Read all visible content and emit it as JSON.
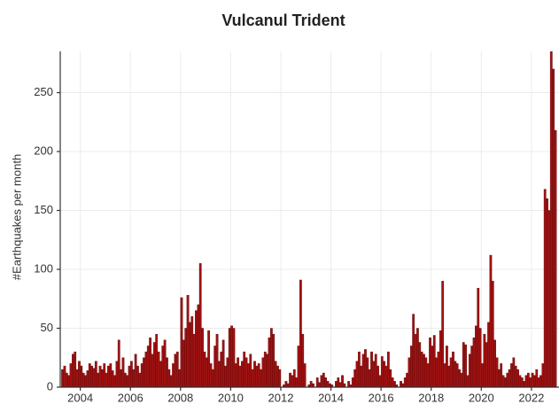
{
  "chart_data": {
    "type": "histogram",
    "title": "Vulcanul Trident",
    "ylabel": "#Earthquakes per month",
    "color": "#a01212",
    "edgecolor": "#5a0505",
    "xlim": [
      2003.2,
      2023.1
    ],
    "xticks": [
      2004,
      2006,
      2008,
      2010,
      2012,
      2014,
      2016,
      2018,
      2020,
      2022
    ],
    "ylim": [
      0,
      285
    ],
    "yticks": [
      0,
      50,
      100,
      150,
      200,
      250
    ],
    "grid": true,
    "bins": [
      2003.25,
      2003.333,
      2003.417,
      2003.5,
      2003.583,
      2003.667,
      2003.75,
      2003.833,
      2003.917,
      2004,
      2004.083,
      2004.167,
      2004.25,
      2004.333,
      2004.417,
      2004.5,
      2004.583,
      2004.667,
      2004.75,
      2004.833,
      2004.917,
      2005,
      2005.083,
      2005.167,
      2005.25,
      2005.333,
      2005.417,
      2005.5,
      2005.583,
      2005.667,
      2005.75,
      2005.833,
      2005.917,
      2006,
      2006.083,
      2006.167,
      2006.25,
      2006.333,
      2006.417,
      2006.5,
      2006.583,
      2006.667,
      2006.75,
      2006.833,
      2006.917,
      2007,
      2007.083,
      2007.167,
      2007.25,
      2007.333,
      2007.417,
      2007.5,
      2007.583,
      2007.667,
      2007.75,
      2007.833,
      2007.917,
      2008,
      2008.083,
      2008.167,
      2008.25,
      2008.333,
      2008.417,
      2008.5,
      2008.583,
      2008.667,
      2008.75,
      2008.833,
      2008.917,
      2009,
      2009.083,
      2009.167,
      2009.25,
      2009.333,
      2009.417,
      2009.5,
      2009.583,
      2009.667,
      2009.75,
      2009.833,
      2009.917,
      2010,
      2010.083,
      2010.167,
      2010.25,
      2010.333,
      2010.417,
      2010.5,
      2010.583,
      2010.667,
      2010.75,
      2010.833,
      2010.917,
      2011,
      2011.083,
      2011.167,
      2011.25,
      2011.333,
      2011.417,
      2011.5,
      2011.583,
      2011.667,
      2011.75,
      2011.833,
      2011.917,
      2012,
      2012.083,
      2012.167,
      2012.25,
      2012.333,
      2012.417,
      2012.5,
      2012.583,
      2012.667,
      2012.75,
      2012.833,
      2012.917,
      2013,
      2013.083,
      2013.167,
      2013.25,
      2013.333,
      2013.417,
      2013.5,
      2013.583,
      2013.667,
      2013.75,
      2013.833,
      2013.917,
      2014,
      2014.083,
      2014.167,
      2014.25,
      2014.333,
      2014.417,
      2014.5,
      2014.583,
      2014.667,
      2014.75,
      2014.833,
      2014.917,
      2015,
      2015.083,
      2015.167,
      2015.25,
      2015.333,
      2015.417,
      2015.5,
      2015.583,
      2015.667,
      2015.75,
      2015.833,
      2015.917,
      2016,
      2016.083,
      2016.167,
      2016.25,
      2016.333,
      2016.417,
      2016.5,
      2016.583,
      2016.667,
      2016.75,
      2016.833,
      2016.917,
      2017,
      2017.083,
      2017.167,
      2017.25,
      2017.333,
      2017.417,
      2017.5,
      2017.583,
      2017.667,
      2017.75,
      2017.833,
      2017.917,
      2018,
      2018.083,
      2018.167,
      2018.25,
      2018.333,
      2018.417,
      2018.5,
      2018.583,
      2018.667,
      2018.75,
      2018.833,
      2018.917,
      2019,
      2019.083,
      2019.167,
      2019.25,
      2019.333,
      2019.417,
      2019.5,
      2019.583,
      2019.667,
      2019.75,
      2019.833,
      2019.917,
      2020,
      2020.083,
      2020.167,
      2020.25,
      2020.333,
      2020.417,
      2020.5,
      2020.583,
      2020.667,
      2020.75,
      2020.833,
      2020.917,
      2021,
      2021.083,
      2021.167,
      2021.25,
      2021.333,
      2021.417,
      2021.5,
      2021.583,
      2021.667,
      2021.75,
      2021.833,
      2021.917,
      2022,
      2022.083,
      2022.167,
      2022.25,
      2022.333,
      2022.417,
      2022.5,
      2022.583,
      2022.667,
      2022.75,
      2022.833,
      2022.917,
      2023
    ],
    "values": [
      15,
      18,
      12,
      10,
      20,
      28,
      30,
      15,
      22,
      18,
      12,
      10,
      14,
      20,
      18,
      16,
      22,
      12,
      18,
      15,
      20,
      12,
      18,
      20,
      14,
      10,
      22,
      40,
      15,
      25,
      12,
      10,
      18,
      22,
      15,
      28,
      18,
      12,
      20,
      25,
      30,
      35,
      42,
      28,
      38,
      45,
      30,
      22,
      35,
      40,
      25,
      15,
      10,
      20,
      28,
      30,
      15,
      76,
      40,
      50,
      78,
      55,
      60,
      45,
      65,
      70,
      105,
      50,
      30,
      25,
      48,
      20,
      15,
      35,
      45,
      22,
      30,
      40,
      18,
      25,
      50,
      52,
      50,
      20,
      25,
      18,
      22,
      30,
      25,
      20,
      28,
      15,
      22,
      18,
      20,
      15,
      25,
      30,
      28,
      42,
      50,
      45,
      22,
      18,
      15,
      0,
      2,
      5,
      3,
      12,
      10,
      15,
      8,
      35,
      91,
      45,
      20,
      0,
      2,
      5,
      3,
      0,
      8,
      4,
      10,
      12,
      8,
      5,
      3,
      2,
      0,
      5,
      8,
      4,
      10,
      3,
      0,
      5,
      2,
      8,
      15,
      22,
      30,
      18,
      28,
      32,
      25,
      15,
      30,
      22,
      28,
      18,
      10,
      26,
      22,
      18,
      30,
      15,
      8,
      5,
      2,
      0,
      5,
      3,
      8,
      12,
      25,
      35,
      62,
      45,
      50,
      38,
      30,
      28,
      25,
      20,
      42,
      35,
      44,
      25,
      30,
      48,
      90,
      20,
      35,
      18,
      25,
      30,
      22,
      20,
      15,
      12,
      38,
      36,
      10,
      28,
      35,
      42,
      52,
      84,
      50,
      20,
      45,
      38,
      55,
      112,
      90,
      40,
      25,
      15,
      20,
      10,
      8,
      12,
      15,
      20,
      25,
      18,
      15,
      10,
      8,
      5,
      10,
      12,
      8,
      12,
      10,
      15,
      8,
      10,
      20,
      168,
      160,
      150,
      290,
      270,
      218
    ]
  }
}
